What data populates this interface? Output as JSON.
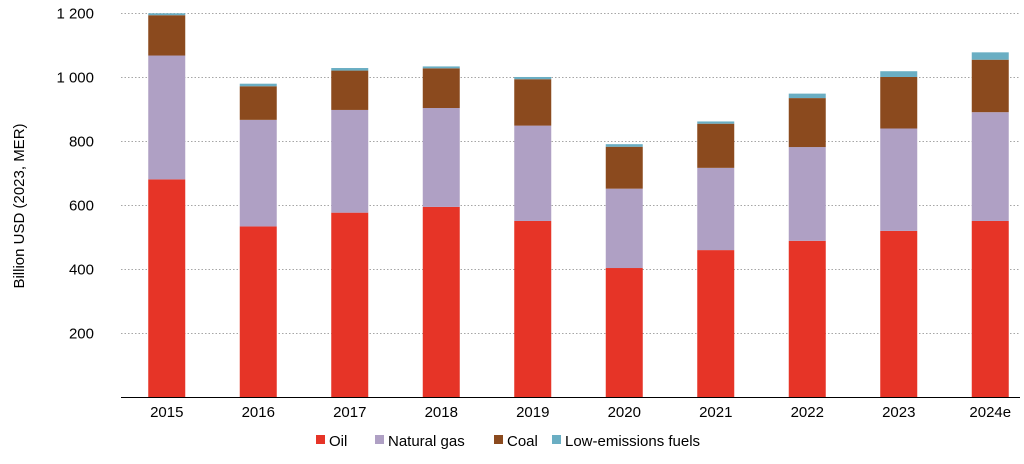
{
  "chart_data": {
    "type": "bar",
    "stacked": true,
    "title": "",
    "xlabel": "",
    "ylabel": "Billion USD (2023, MER)",
    "ylim": [
      0,
      1200
    ],
    "yticks": [
      200,
      400,
      600,
      800,
      1000,
      1200
    ],
    "ytick_labels": [
      "200",
      "400",
      "600",
      "800",
      "1 000",
      "1 200"
    ],
    "grid": true,
    "legend_position": "bottom",
    "categories": [
      "2015",
      "2016",
      "2017",
      "2018",
      "2019",
      "2020",
      "2021",
      "2022",
      "2023",
      "2024e"
    ],
    "series": [
      {
        "name": "Oil",
        "color": "#e63427",
        "values": [
          681,
          534,
          577,
          595,
          551,
          404,
          460,
          489,
          520,
          551
        ]
      },
      {
        "name": "Natural gas",
        "color": "#afa0c4",
        "values": [
          387,
          333,
          321,
          309,
          298,
          248,
          257,
          293,
          320,
          340
        ]
      },
      {
        "name": "Coal",
        "color": "#8b4a1e",
        "values": [
          126,
          105,
          123,
          124,
          145,
          131,
          138,
          153,
          161,
          164
        ]
      },
      {
        "name": "Low-emissions fuels",
        "color": "#6aaec3",
        "values": [
          6,
          8,
          8,
          6,
          7,
          8,
          7,
          14,
          18,
          23
        ]
      }
    ]
  }
}
